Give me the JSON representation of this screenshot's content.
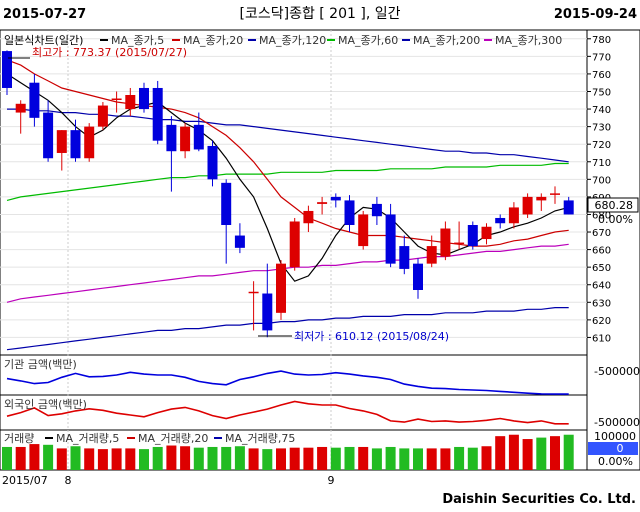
{
  "header": {
    "start_date": "2015-07-27",
    "title": "[코스닥]종합 [ 201 ], 일간",
    "end_date": "2015-09-24"
  },
  "footer": {
    "brand": "Daishin Securities Co. Ltd.",
    "x_labels": [
      "2015/07",
      "8",
      "9"
    ]
  },
  "colors": {
    "up": "#dd0000",
    "down": "#0000dd",
    "ma5": "#000000",
    "ma20": "#cc0000",
    "ma120": "#0000aa",
    "ma60": "#00bb00",
    "ma200": "#0000aa",
    "ma300": "#bb00bb"
  },
  "chart_data": [
    {
      "type": "candlestick",
      "panel": "price",
      "legend": [
        "일본식차트(일간)",
        "MA_종가,5",
        "MA_종가,20",
        "MA_종가,120",
        "MA_종가,60",
        "MA_종가,200",
        "MA_종가,300"
      ],
      "ylim": [
        600,
        785
      ],
      "yticks": [
        610,
        620,
        630,
        640,
        650,
        660,
        670,
        680,
        690,
        700,
        710,
        720,
        730,
        740,
        750,
        760,
        770,
        780
      ],
      "last_value": "680.28",
      "last_change": "0.00%",
      "annotations": {
        "high": "최고가 : 773.37 (2015/07/27)",
        "low": "최저가 : 610.12 (2015/08/24)"
      },
      "candles": [
        {
          "o": 773,
          "h": 773.37,
          "l": 748,
          "c": 752
        },
        {
          "o": 738,
          "h": 745,
          "l": 726,
          "c": 743
        },
        {
          "o": 755,
          "h": 760,
          "l": 730,
          "c": 735
        },
        {
          "o": 738,
          "h": 745,
          "l": 710,
          "c": 712
        },
        {
          "o": 715,
          "h": 728,
          "l": 705,
          "c": 728
        },
        {
          "o": 728,
          "h": 734,
          "l": 710,
          "c": 712
        },
        {
          "o": 712,
          "h": 732,
          "l": 710,
          "c": 730
        },
        {
          "o": 730,
          "h": 744,
          "l": 728,
          "c": 742
        },
        {
          "o": 746,
          "h": 750,
          "l": 738,
          "c": 746
        },
        {
          "o": 740,
          "h": 752,
          "l": 736,
          "c": 748
        },
        {
          "o": 752,
          "h": 755,
          "l": 738,
          "c": 740
        },
        {
          "o": 752,
          "h": 756,
          "l": 720,
          "c": 722
        },
        {
          "o": 731,
          "h": 736,
          "l": 693,
          "c": 716
        },
        {
          "o": 716,
          "h": 732,
          "l": 712,
          "c": 730
        },
        {
          "o": 731,
          "h": 738,
          "l": 716,
          "c": 717
        },
        {
          "o": 719,
          "h": 722,
          "l": 696,
          "c": 700
        },
        {
          "o": 698,
          "h": 700,
          "l": 652,
          "c": 674
        },
        {
          "o": 668,
          "h": 675,
          "l": 658,
          "c": 661
        },
        {
          "o": 636,
          "h": 642,
          "l": 614,
          "c": 636
        },
        {
          "o": 635,
          "h": 652,
          "l": 610.12,
          "c": 614
        },
        {
          "o": 624,
          "h": 654,
          "l": 620,
          "c": 652
        },
        {
          "o": 650,
          "h": 678,
          "l": 648,
          "c": 676
        },
        {
          "o": 675,
          "h": 685,
          "l": 670,
          "c": 682
        },
        {
          "o": 686,
          "h": 690,
          "l": 680,
          "c": 687
        },
        {
          "o": 690,
          "h": 692,
          "l": 684,
          "c": 688
        },
        {
          "o": 688,
          "h": 691,
          "l": 670,
          "c": 674
        },
        {
          "o": 662,
          "h": 682,
          "l": 660,
          "c": 680
        },
        {
          "o": 686,
          "h": 690,
          "l": 674,
          "c": 679
        },
        {
          "o": 680,
          "h": 686,
          "l": 650,
          "c": 652
        },
        {
          "o": 662,
          "h": 668,
          "l": 646,
          "c": 649
        },
        {
          "o": 652,
          "h": 655,
          "l": 632,
          "c": 637
        },
        {
          "o": 652,
          "h": 668,
          "l": 650,
          "c": 662
        },
        {
          "o": 656,
          "h": 676,
          "l": 654,
          "c": 672
        },
        {
          "o": 664,
          "h": 676,
          "l": 660,
          "c": 664
        },
        {
          "o": 674,
          "h": 676,
          "l": 660,
          "c": 662
        },
        {
          "o": 666,
          "h": 675,
          "l": 663,
          "c": 673
        },
        {
          "o": 678,
          "h": 680,
          "l": 672,
          "c": 675
        },
        {
          "o": 675,
          "h": 687,
          "l": 672,
          "c": 684
        },
        {
          "o": 680,
          "h": 692,
          "l": 678,
          "c": 690
        },
        {
          "o": 688,
          "h": 692,
          "l": 682,
          "c": 690
        },
        {
          "o": 692,
          "h": 696,
          "l": 686,
          "c": 692
        },
        {
          "o": 688,
          "h": 690,
          "l": 680,
          "c": 680
        }
      ],
      "ma5": [
        760,
        755,
        750,
        745,
        738,
        730,
        724,
        728,
        735,
        740,
        742,
        744,
        738,
        732,
        728,
        722,
        712,
        700,
        690,
        672,
        652,
        642,
        645,
        655,
        668,
        678,
        684,
        683,
        678,
        670,
        662,
        658,
        657,
        660,
        663,
        668,
        670,
        673,
        675,
        678,
        682,
        684
      ],
      "ma20": [
        768,
        765,
        760,
        756,
        752,
        750,
        748,
        746,
        744,
        743,
        742,
        741,
        740,
        738,
        735,
        730,
        725,
        718,
        710,
        700,
        690,
        684,
        678,
        675,
        672,
        670,
        668,
        668,
        668,
        667,
        666,
        665,
        664,
        663,
        662,
        662,
        663,
        665,
        666,
        668,
        670,
        671
      ],
      "ma60": [
        688,
        690,
        691,
        692,
        693,
        694,
        695,
        696,
        697,
        698,
        699,
        700,
        701,
        701,
        702,
        702,
        703,
        703,
        703,
        703,
        704,
        704,
        704,
        704,
        705,
        705,
        705,
        705,
        706,
        706,
        706,
        706,
        707,
        707,
        707,
        707,
        708,
        708,
        708,
        708,
        709,
        709
      ],
      "ma120": [
        740,
        740,
        739,
        739,
        738,
        738,
        737,
        737,
        736,
        736,
        735,
        734,
        734,
        733,
        733,
        732,
        731,
        731,
        730,
        729,
        728,
        727,
        726,
        725,
        724,
        723,
        722,
        721,
        720,
        719,
        718,
        717,
        716,
        716,
        715,
        715,
        714,
        714,
        713,
        712,
        711,
        710
      ],
      "ma200": [
        603,
        604,
        605,
        606,
        607,
        608,
        609,
        610,
        611,
        612,
        613,
        614,
        614,
        615,
        615,
        616,
        617,
        617,
        618,
        618,
        619,
        619,
        620,
        620,
        621,
        621,
        622,
        622,
        622,
        623,
        623,
        623,
        624,
        624,
        624,
        625,
        625,
        625,
        626,
        626,
        627,
        627
      ],
      "ma300": [
        630,
        632,
        633,
        634,
        635,
        636,
        637,
        638,
        639,
        640,
        641,
        642,
        643,
        644,
        645,
        645,
        646,
        647,
        648,
        648,
        649,
        650,
        650,
        651,
        651,
        652,
        653,
        653,
        654,
        654,
        655,
        656,
        656,
        657,
        658,
        659,
        659,
        660,
        661,
        662,
        662,
        663
      ]
    },
    {
      "type": "line",
      "panel": "institutional",
      "label": "기관 금액(백만)",
      "ytick": "-500000",
      "values": [
        -388000,
        -398000,
        -410000,
        -405000,
        -382000,
        -365000,
        -380000,
        -378000,
        -372000,
        -360000,
        -368000,
        -372000,
        -372000,
        -382000,
        -400000,
        -410000,
        -415000,
        -392000,
        -380000,
        -365000,
        -355000,
        -368000,
        -372000,
        -370000,
        -362000,
        -368000,
        -376000,
        -382000,
        -392000,
        -412000,
        -422000,
        -430000,
        -432000,
        -436000,
        -438000,
        -440000,
        -444000,
        -448000,
        -452000,
        -455000,
        -456000,
        -456000
      ]
    },
    {
      "type": "line",
      "panel": "foreign",
      "label": "외국인 금액(백만)",
      "ytick": "-500000",
      "values": [
        -430000,
        -418000,
        -402000,
        -428000,
        -422000,
        -412000,
        -405000,
        -410000,
        -420000,
        -426000,
        -432000,
        -418000,
        -406000,
        -400000,
        -412000,
        -428000,
        -438000,
        -426000,
        -416000,
        -406000,
        -392000,
        -380000,
        -388000,
        -392000,
        -392000,
        -404000,
        -412000,
        -424000,
        -446000,
        -450000,
        -440000,
        -448000,
        -446000,
        -450000,
        -448000,
        -444000,
        -438000,
        -446000,
        -452000,
        -446000,
        -456000,
        -456000
      ]
    },
    {
      "type": "bar",
      "panel": "volume",
      "legend": [
        "거래량",
        "MA_거래량,5",
        "MA_거래량,20",
        "MA_거래량,75"
      ],
      "ytick": "100000",
      "last_value": "0",
      "last_change": "0.00%",
      "values": [
        64000,
        64000,
        72000,
        70000,
        60000,
        66000,
        60000,
        58000,
        60000,
        60000,
        58000,
        64000,
        68000,
        66000,
        62000,
        64000,
        64000,
        66000,
        60000,
        58000,
        60000,
        62000,
        62000,
        64000,
        62000,
        64000,
        64000,
        60000,
        64000,
        60000,
        60000,
        60000,
        60000,
        64000,
        62000,
        66000,
        94000,
        98000,
        86000,
        90000,
        94000,
        98000
      ],
      "up": [
        false,
        true,
        true,
        false,
        true,
        false,
        true,
        true,
        true,
        true,
        false,
        false,
        true,
        true,
        false,
        false,
        false,
        false,
        true,
        false,
        true,
        true,
        true,
        true,
        false,
        false,
        true,
        false,
        false,
        false,
        false,
        true,
        true,
        false,
        false,
        true,
        true,
        true,
        true,
        false,
        true,
        false
      ]
    }
  ]
}
